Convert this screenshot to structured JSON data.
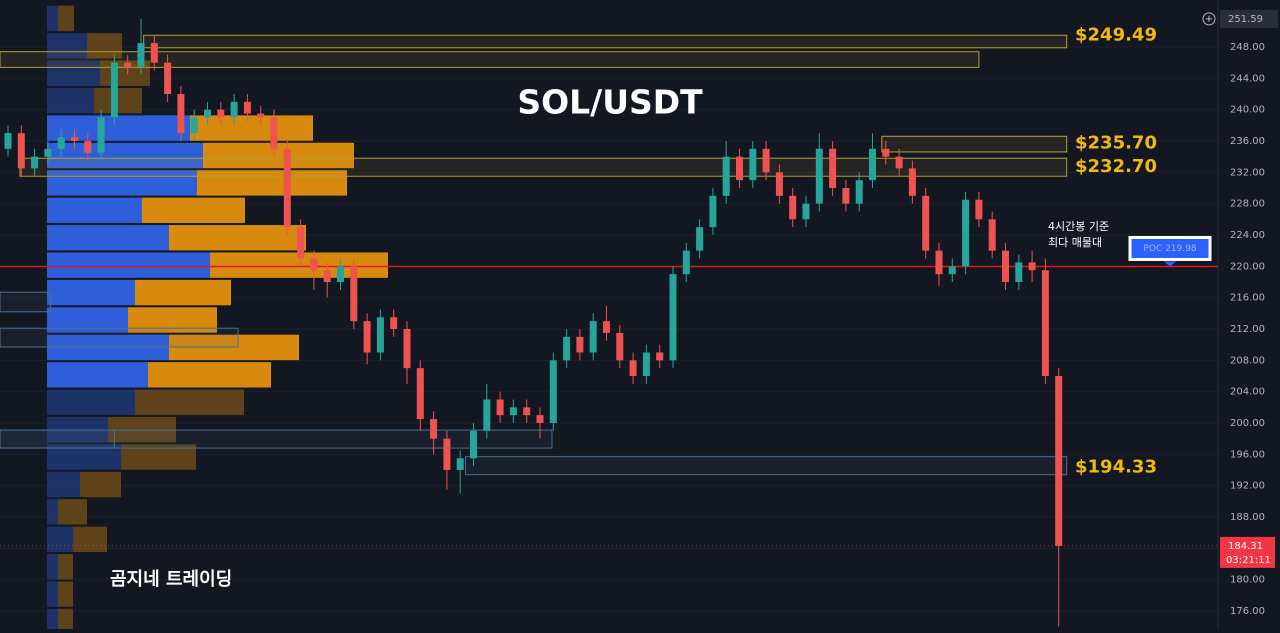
{
  "chart_data": {
    "type": "candlestick",
    "title": "SOL/USDT",
    "watermark": "곰지네 트레이딩",
    "note": [
      "4시간봉 기준",
      "최다 매물대"
    ],
    "up_color": "#26a69a",
    "down_color": "#ef5350",
    "open": [
      235,
      237,
      232.5,
      234,
      235,
      236.5,
      236,
      234.5,
      239,
      246,
      245.5,
      248.5,
      246,
      242,
      237,
      239,
      240,
      239,
      241,
      239.5,
      239,
      235,
      225,
      221,
      219.5,
      218,
      220,
      213,
      209,
      213.5,
      212,
      207,
      200.5,
      198,
      194,
      195.5,
      199,
      203,
      201,
      202,
      201,
      200,
      208,
      211,
      209,
      213,
      211.5,
      208,
      206,
      209,
      208,
      219,
      222,
      225,
      229,
      234,
      231,
      235,
      232,
      229,
      226,
      228,
      235,
      230,
      228,
      231,
      235,
      234,
      232.5,
      229,
      222,
      219,
      220,
      228.5,
      226,
      222,
      218,
      220.5,
      219.5,
      206
    ],
    "high": [
      238,
      238,
      235,
      236,
      237.5,
      237.5,
      237,
      240,
      247,
      247,
      251.6,
      249.5,
      247,
      243,
      240,
      241,
      241,
      242,
      242,
      240.5,
      240,
      236,
      226,
      222,
      220.5,
      221,
      221,
      214,
      214.5,
      214.5,
      213,
      208,
      201.5,
      199,
      196.5,
      200,
      205,
      204,
      203,
      203,
      202,
      209,
      212,
      212,
      214,
      215,
      212.5,
      209,
      210,
      210,
      220,
      223,
      226,
      230,
      236,
      235,
      236,
      236,
      233,
      230,
      229,
      237,
      236,
      231,
      232,
      237,
      236,
      235,
      233.5,
      230,
      223,
      221,
      229.5,
      229.5,
      227,
      223,
      221.5,
      222,
      221,
      207
    ],
    "low": [
      234,
      231.5,
      231.5,
      233,
      234,
      235,
      233.5,
      233.5,
      238,
      244.5,
      244.5,
      245,
      241,
      236,
      236,
      238,
      238,
      238,
      238.5,
      238,
      234,
      224,
      220,
      217,
      216,
      217,
      212,
      207.5,
      208,
      211,
      205,
      199,
      196,
      191.5,
      191,
      194.5,
      198,
      200,
      200,
      200,
      198,
      199,
      207,
      208,
      208,
      210.5,
      207,
      205,
      205,
      207,
      207,
      218,
      221,
      224,
      228,
      230,
      230,
      231,
      228,
      225,
      225,
      227,
      229,
      227,
      227,
      230,
      233,
      231.5,
      228,
      221,
      217.5,
      218,
      219,
      225,
      221,
      217,
      217,
      218,
      205,
      174
    ],
    "close": [
      237,
      232.5,
      234,
      235,
      236.5,
      236,
      234.5,
      239,
      246,
      245.5,
      248.5,
      246,
      242,
      237,
      239,
      240,
      239,
      241,
      239.5,
      239,
      235,
      225,
      221,
      219.5,
      218,
      220,
      213,
      209,
      213.5,
      212,
      207,
      200.5,
      198,
      194,
      195.5,
      199,
      203,
      201,
      202,
      201,
      200,
      208,
      211,
      209,
      213,
      211.5,
      208,
      206,
      209,
      208,
      219,
      222,
      225,
      229,
      234,
      231,
      235,
      232,
      229,
      226,
      228,
      235,
      230,
      228,
      231,
      235,
      234,
      232.5,
      229,
      222,
      219,
      220,
      228.5,
      226,
      222,
      218,
      220.5,
      219.5,
      206,
      184.31
    ],
    "ylim": [
      173.7,
      254.0
    ],
    "yticks": [
      {
        "value": 176,
        "label": "176.00"
      },
      {
        "value": 180,
        "label": "180.00"
      },
      {
        "value": 184,
        "label": "184.00"
      },
      {
        "value": 188,
        "label": "188.00"
      },
      {
        "value": 192,
        "label": "192.00"
      },
      {
        "value": 196,
        "label": "196.00"
      },
      {
        "value": 200,
        "label": "200.00"
      },
      {
        "value": 204,
        "label": "204.00"
      },
      {
        "value": 208,
        "label": "208.00"
      },
      {
        "value": 212,
        "label": "212.00"
      },
      {
        "value": 216,
        "label": "216.00"
      },
      {
        "value": 220,
        "label": "220.00"
      },
      {
        "value": 224,
        "label": "224.00"
      },
      {
        "value": 228,
        "label": "228.00"
      },
      {
        "value": 232,
        "label": "232.00"
      },
      {
        "value": 236,
        "label": "236.00"
      },
      {
        "value": 240,
        "label": "240.00"
      },
      {
        "value": 244,
        "label": "244.00"
      },
      {
        "value": 248,
        "label": "248.00"
      }
    ],
    "high_label": {
      "value": 251.59,
      "label": "251.59"
    },
    "last": {
      "value": 184.31,
      "label": "184.31"
    },
    "countdown": "03:21:11",
    "poc": {
      "value": 219.98,
      "label": "POC  219.98"
    },
    "price_labels": [
      {
        "value": 249.49,
        "label": "$249.49"
      },
      {
        "value": 235.7,
        "label": "$235.70"
      },
      {
        "value": 232.7,
        "label": "$232.70"
      },
      {
        "value": 194.33,
        "label": "$194.33"
      }
    ],
    "zones": [
      {
        "top": 249.5,
        "bottom": 247.9,
        "from": 10.2,
        "to": 79.6,
        "color": "#b59f2e"
      },
      {
        "top": 247.4,
        "bottom": 245.4,
        "from": -0.6,
        "to": 73,
        "color": "#b59f2e"
      },
      {
        "top": 236.6,
        "bottom": 234.6,
        "from": 65.7,
        "to": 79.6,
        "color": "#b59f2e"
      },
      {
        "top": 233.8,
        "bottom": 231.5,
        "from": 0.9,
        "to": 79.6,
        "color": "#b59f2e"
      },
      {
        "top": 199.1,
        "bottom": 196.8,
        "from": -0.6,
        "to": 40.9,
        "color": "#4a6f96"
      },
      {
        "top": 195.7,
        "bottom": 193.4,
        "from": 34.4,
        "to": 79.6,
        "color": "#4a6f96"
      },
      {
        "top": 216.7,
        "bottom": 214.2,
        "from": -0.6,
        "to": 3.2,
        "color": "#4a6f96"
      },
      {
        "top": 212.1,
        "bottom": 209.7,
        "from": -0.6,
        "to": 17.3,
        "color": "#4a6f96"
      },
      {
        "top": 199.1,
        "bottom": 196.8,
        "from": -0.6,
        "to": 8.0,
        "color": "#4a6f96"
      }
    ],
    "profile": {
      "bins": [
        253.4,
        249.9,
        246.4,
        242.9,
        239.4,
        235.9,
        232.4,
        228.9,
        225.4,
        221.9,
        218.4,
        214.9,
        211.4,
        207.9,
        204.4,
        200.9,
        197.4,
        193.9,
        190.4,
        186.9,
        183.4,
        179.9,
        176.4,
        172.9
      ],
      "buy": [
        11,
        40,
        53,
        47,
        143,
        156,
        150,
        95,
        122,
        163,
        88,
        81,
        122,
        101,
        88,
        61,
        74,
        33,
        11,
        26,
        11,
        11,
        11
      ],
      "sell": [
        16,
        35,
        50,
        48,
        123,
        151,
        150,
        103,
        137,
        178,
        96,
        89,
        130,
        123,
        109,
        68,
        75,
        41,
        29,
        34,
        15,
        15,
        15
      ],
      "buy_color": "#2f5fd8",
      "sell_color": "#d88a0e",
      "value_area": [
        204.4,
        239.4
      ]
    }
  }
}
